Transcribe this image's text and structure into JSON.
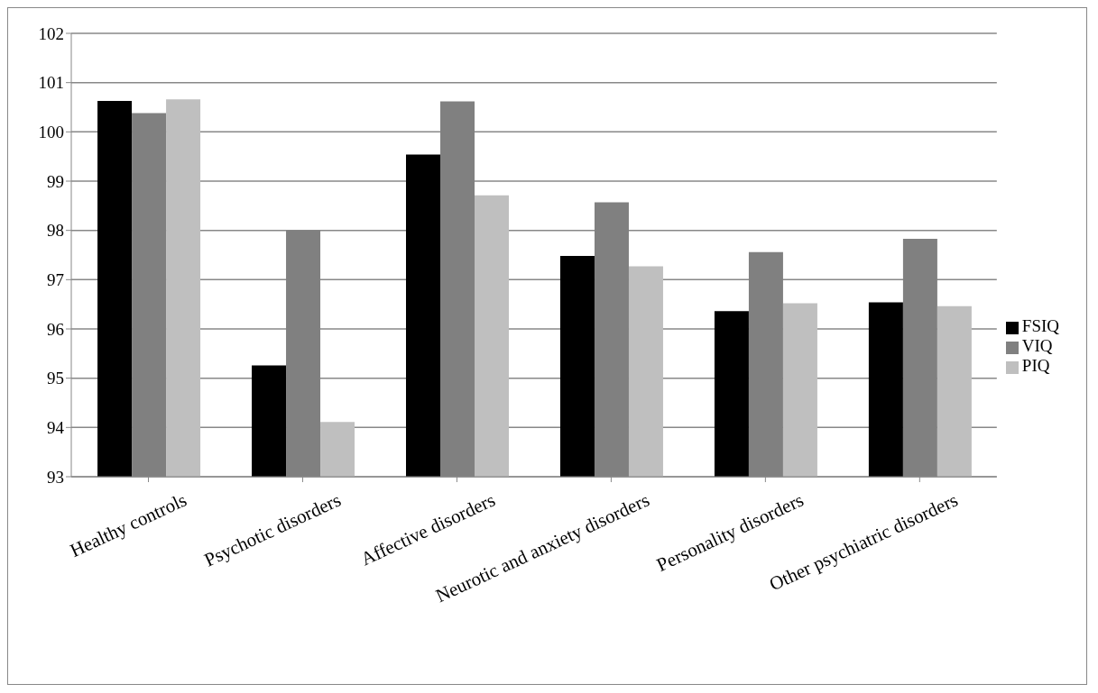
{
  "chart_data": {
    "type": "bar",
    "categories": [
      "Healthy controls",
      "Psychotic disorders",
      "Affective disorders",
      "Neurotic and anxiety disorders",
      "Personality disorders",
      "Other psychiatric disorders"
    ],
    "series": [
      {
        "name": "FSIQ",
        "color": "#000000",
        "values": [
          100.63,
          95.26,
          99.54,
          97.48,
          96.36,
          96.54
        ]
      },
      {
        "name": "VIQ",
        "color": "#808080",
        "values": [
          100.38,
          98.0,
          100.62,
          98.57,
          97.56,
          97.83
        ]
      },
      {
        "name": "PIQ",
        "color": "#bfbfbf",
        "values": [
          100.66,
          94.11,
          98.71,
          97.27,
          96.52,
          96.46
        ]
      }
    ],
    "ylim": [
      93,
      102
    ],
    "yticks": [
      93,
      94,
      95,
      96,
      97,
      98,
      99,
      100,
      101,
      102
    ],
    "grid": "y",
    "legend": "right"
  }
}
